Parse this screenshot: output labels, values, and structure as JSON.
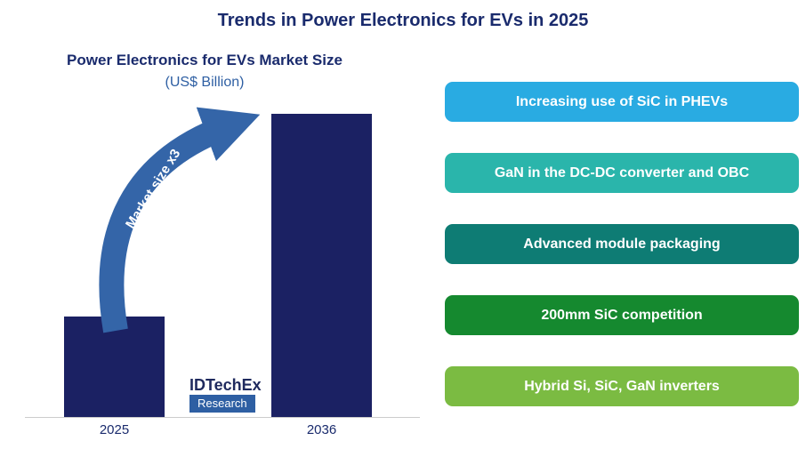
{
  "page": {
    "title": "Trends in Power Electronics for EVs in 2025"
  },
  "chart": {
    "title": "Power Electronics for EVs Market Size",
    "subtitle": "(US$ Billion)",
    "arrow_label": "Market size x3",
    "x_labels": [
      "2025",
      "2036"
    ]
  },
  "chart_data": {
    "type": "bar",
    "title": "Power Electronics for EVs Market Size (US$ Billion)",
    "categories": [
      "2025",
      "2036"
    ],
    "values": [
      1,
      3
    ],
    "annotations": [
      "Market size x3"
    ],
    "ylabel": "US$ Billion",
    "grid": false,
    "legend": false,
    "bar_color": "#1b2163"
  },
  "logo": {
    "brand": "IDTechEx",
    "sub": "Research"
  },
  "pills": [
    {
      "label": "Increasing use of SiC in PHEVs",
      "color": "#29abe2"
    },
    {
      "label": "GaN in the DC-DC converter and OBC",
      "color": "#2ab5ab"
    },
    {
      "label": "Advanced module packaging",
      "color": "#0e7c74"
    },
    {
      "label": "200mm SiC competition",
      "color": "#15892f"
    },
    {
      "label": "Hybrid Si, SiC, GaN inverters",
      "color": "#7bbb42"
    }
  ],
  "colors": {
    "navy": "#1a2b6d",
    "bar": "#1b2163",
    "arrow": "#3465a8",
    "subtitle_blue": "#2e5fa3"
  }
}
